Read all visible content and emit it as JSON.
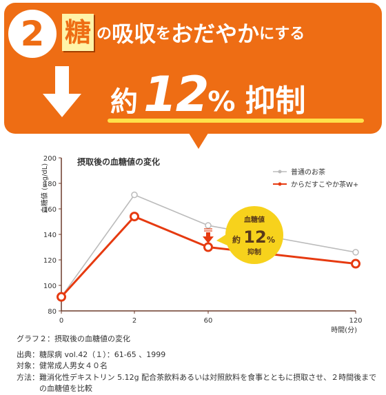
{
  "header": {
    "number": "2",
    "kanji": "糖",
    "part_no": "の",
    "part_kyushu": "吸収",
    "part_wo": "を",
    "part_odayaka": "おだやか",
    "part_nisuru": "にする",
    "yaku": "約",
    "value": "12",
    "percent": "%",
    "suffix": "抑制"
  },
  "chart_data": {
    "type": "line",
    "title": "摂取後の血糖値の変化",
    "ylabel": "血糖値 (mg/dL)",
    "xlabel": "時間(分)",
    "x": [
      0,
      2,
      60,
      120
    ],
    "x_tick_labels": [
      "0",
      "2",
      "60",
      "120"
    ],
    "ylim": [
      80,
      200
    ],
    "y_ticks": [
      80,
      100,
      120,
      140,
      160,
      180,
      200
    ],
    "grid": false,
    "legend_position": "top-right",
    "series": [
      {
        "name": "普通のお茶",
        "values": [
          91,
          171,
          147,
          126
        ],
        "color": "#bbbbbb"
      },
      {
        "name": "からだすこやか茶W+",
        "values": [
          91,
          154,
          130,
          117
        ],
        "color": "#e63a10"
      }
    ],
    "annotation": {
      "line1": "血糖値",
      "prefix": "約",
      "value": "12",
      "unit": "%",
      "line3": "抑制"
    }
  },
  "colors": {
    "accent": "#ee6d14",
    "series_highlight": "#e63a10",
    "badge": "#f7d21c",
    "axis": "#6b3a2a"
  },
  "caption": {
    "title": "グラフ２：摂取後の血糖値の変化",
    "source_label": "出典：",
    "source": "糖尿病 vol.42（１）：61-65 、1999",
    "subject_label": "対象：",
    "subject": "健常成人男女４０名",
    "method_label": "方法：",
    "method": "難消化性デキストリン 5.12g 配合茶飲料あるいは対照飲料を食事とともに摂取させ、２時間後までの血糖値を比較"
  }
}
